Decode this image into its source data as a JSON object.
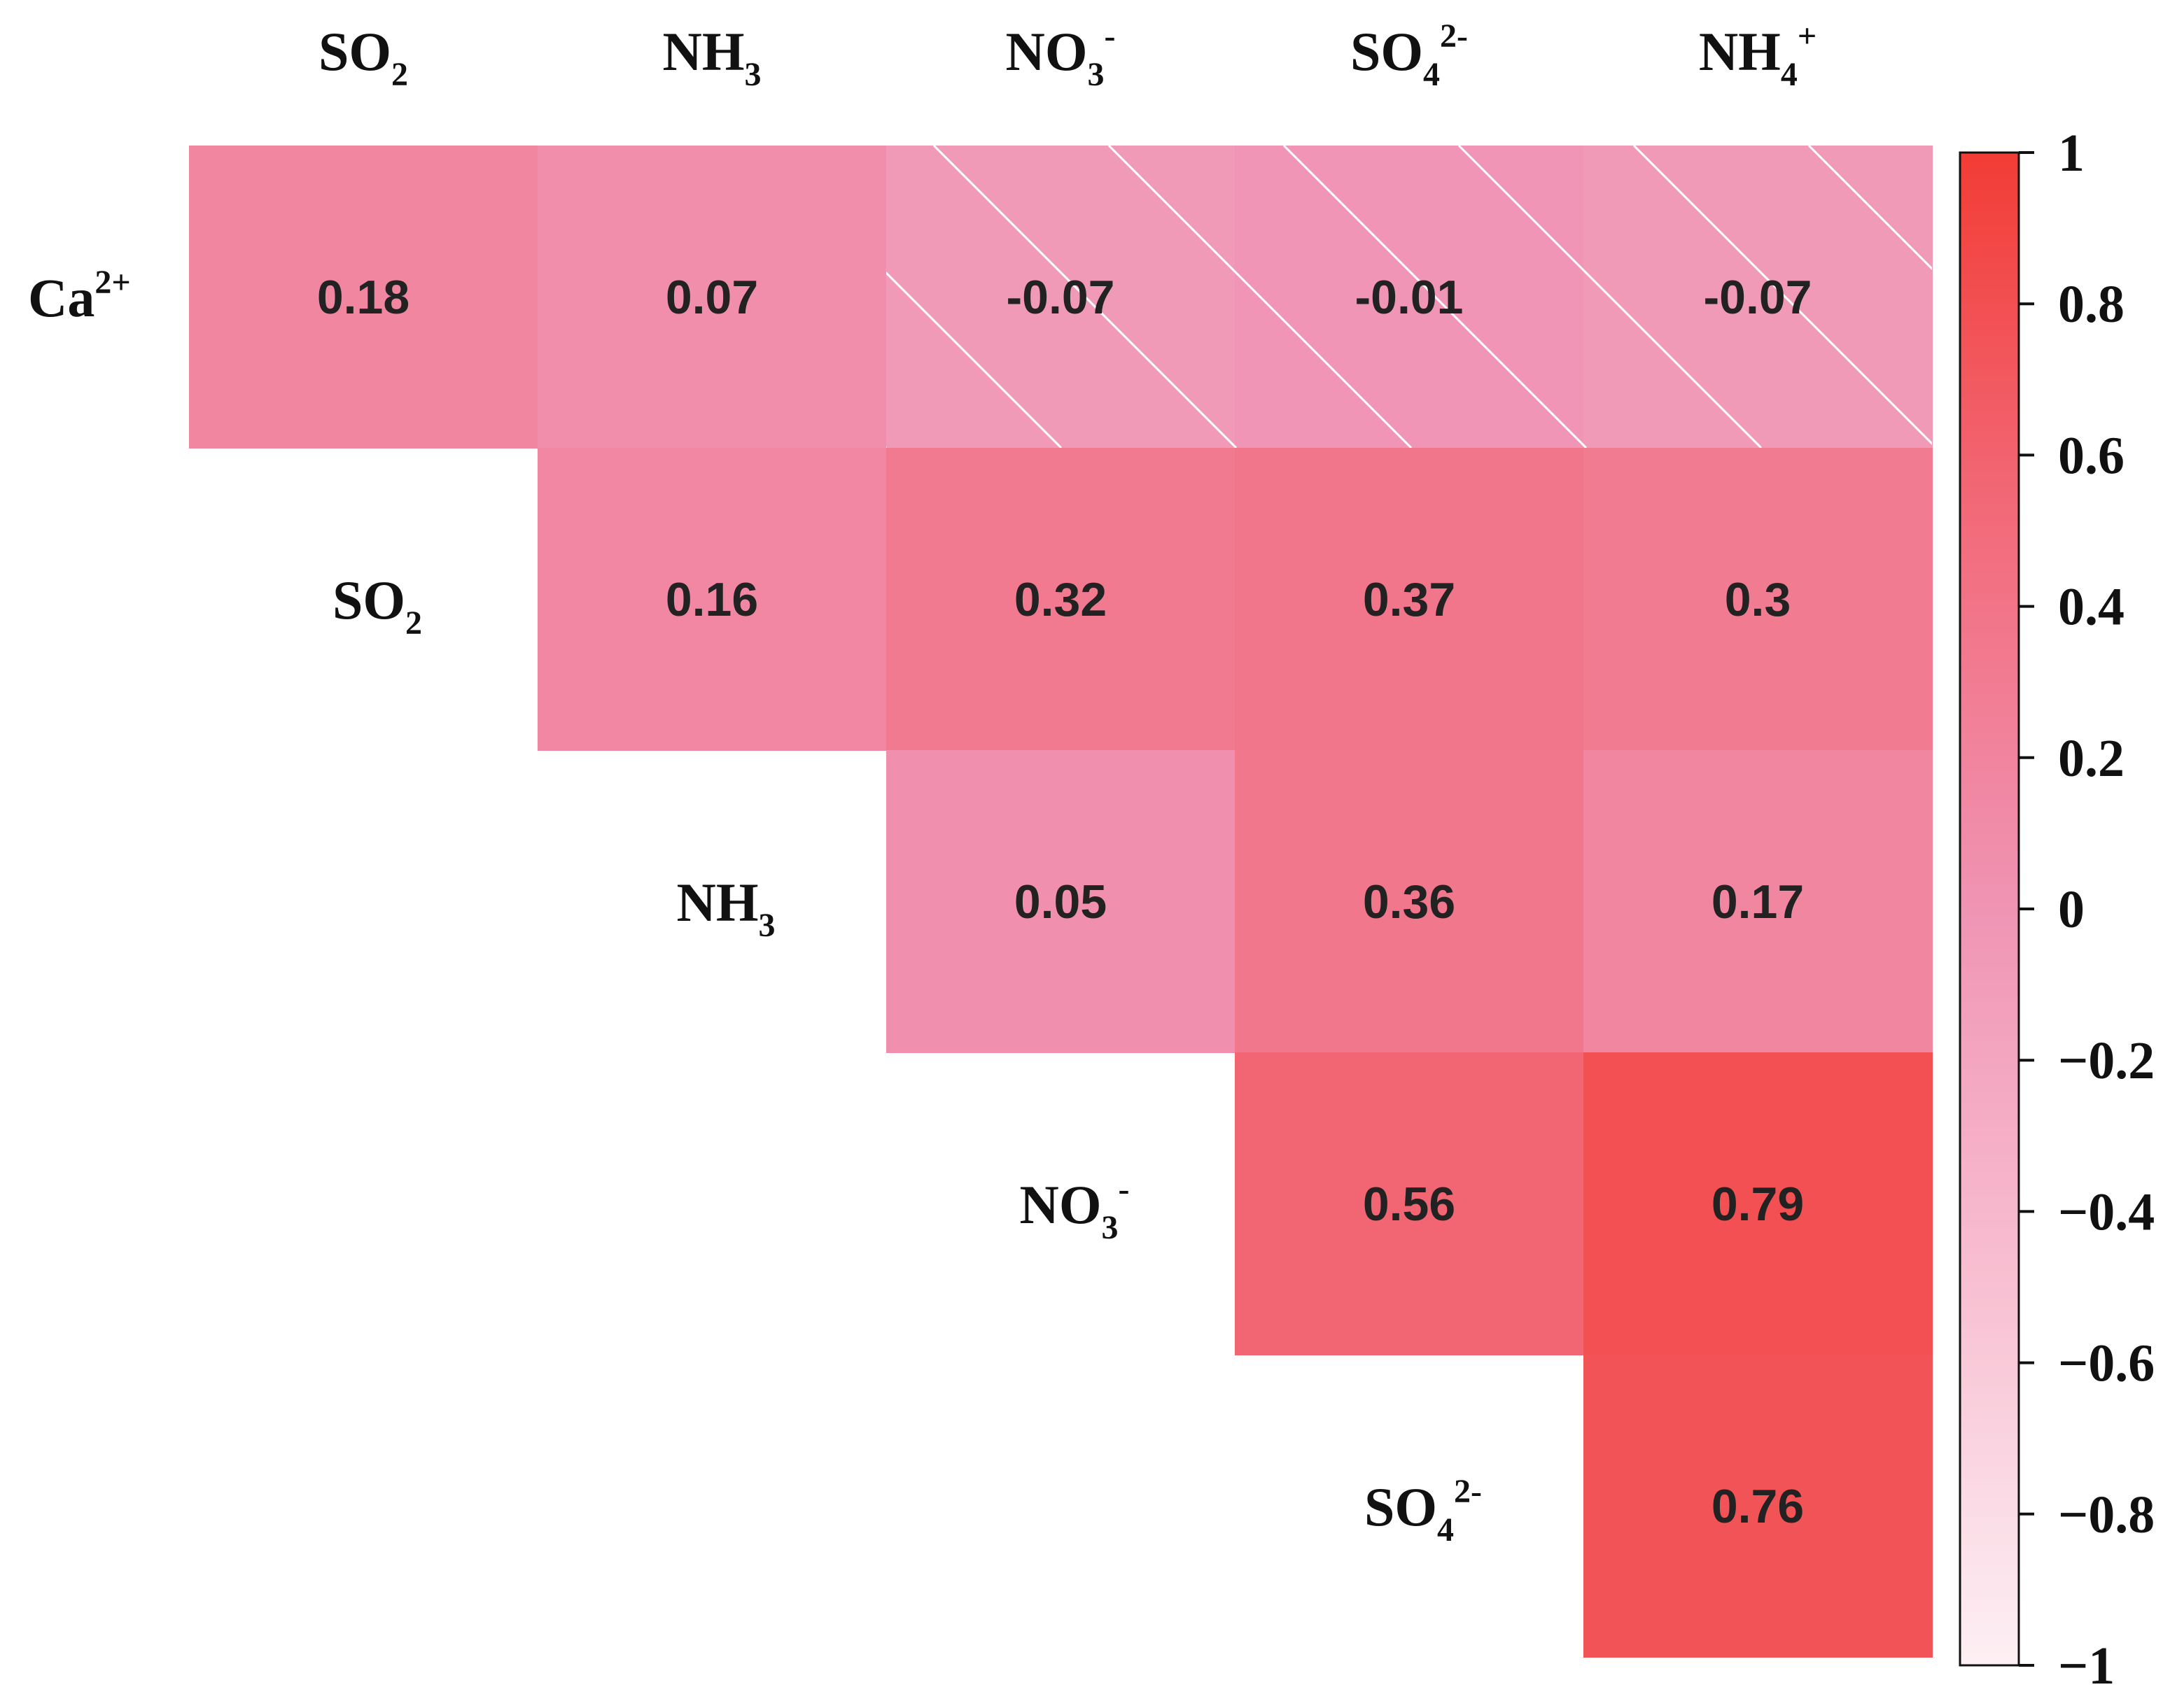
{
  "chart_data": {
    "type": "heatmap",
    "title": "",
    "columns": [
      {
        "id": "SO2",
        "base": "SO",
        "sub": "2",
        "sup": ""
      },
      {
        "id": "NH3",
        "base": "NH",
        "sub": "3",
        "sup": ""
      },
      {
        "id": "NO3-",
        "base": "NO",
        "sub": "3",
        "sup": "-"
      },
      {
        "id": "SO42-",
        "base": "SO",
        "sub": "4",
        "sup": "2-"
      },
      {
        "id": "NH4+",
        "base": "NH",
        "sub": "4",
        "sup": "+"
      }
    ],
    "rows": [
      {
        "id": "Ca2+",
        "base": "Ca",
        "sub": "",
        "sup": "2+"
      },
      {
        "id": "SO2",
        "base": "SO",
        "sub": "2",
        "sup": ""
      },
      {
        "id": "NH3",
        "base": "NH",
        "sub": "3",
        "sup": ""
      },
      {
        "id": "NO3-",
        "base": "NO",
        "sub": "3",
        "sup": "-"
      },
      {
        "id": "SO42-",
        "base": "SO",
        "sub": "4",
        "sup": "2-"
      }
    ],
    "cells": [
      {
        "row": 0,
        "col": 0,
        "value": 0.18,
        "label": "0.18",
        "hatched": false
      },
      {
        "row": 0,
        "col": 1,
        "value": 0.07,
        "label": "0.07",
        "hatched": false
      },
      {
        "row": 0,
        "col": 2,
        "value": -0.07,
        "label": "-0.07",
        "hatched": true
      },
      {
        "row": 0,
        "col": 3,
        "value": -0.01,
        "label": "-0.01",
        "hatched": true
      },
      {
        "row": 0,
        "col": 4,
        "value": -0.07,
        "label": "-0.07",
        "hatched": true
      },
      {
        "row": 1,
        "col": 1,
        "value": 0.16,
        "label": "0.16",
        "hatched": false
      },
      {
        "row": 1,
        "col": 2,
        "value": 0.32,
        "label": "0.32",
        "hatched": false
      },
      {
        "row": 1,
        "col": 3,
        "value": 0.37,
        "label": "0.37",
        "hatched": false
      },
      {
        "row": 1,
        "col": 4,
        "value": 0.3,
        "label": "0.3",
        "hatched": false
      },
      {
        "row": 2,
        "col": 2,
        "value": 0.05,
        "label": "0.05",
        "hatched": false
      },
      {
        "row": 2,
        "col": 3,
        "value": 0.36,
        "label": "0.36",
        "hatched": false
      },
      {
        "row": 2,
        "col": 4,
        "value": 0.17,
        "label": "0.17",
        "hatched": false
      },
      {
        "row": 3,
        "col": 3,
        "value": 0.56,
        "label": "0.56",
        "hatched": false
      },
      {
        "row": 3,
        "col": 4,
        "value": 0.79,
        "label": "0.79",
        "hatched": false
      },
      {
        "row": 4,
        "col": 4,
        "value": 0.76,
        "label": "0.76",
        "hatched": false
      }
    ],
    "colorbar": {
      "min": -1,
      "max": 1,
      "ticks": [
        {
          "value": 1,
          "label": "1"
        },
        {
          "value": 0.8,
          "label": "0.8"
        },
        {
          "value": 0.6,
          "label": "0.6"
        },
        {
          "value": 0.4,
          "label": "0.4"
        },
        {
          "value": 0.2,
          "label": "0.2"
        },
        {
          "value": 0,
          "label": "0"
        },
        {
          "value": -0.2,
          "label": "−0.2"
        },
        {
          "value": -0.4,
          "label": "−0.4"
        },
        {
          "value": -0.6,
          "label": "−0.6"
        },
        {
          "value": -0.8,
          "label": "−0.8"
        },
        {
          "value": -1,
          "label": "−1"
        }
      ],
      "color_stops": [
        {
          "value": -1,
          "color": "#fdf0f4"
        },
        {
          "value": -0.5,
          "color": "#f8c0d2"
        },
        {
          "value": 0,
          "color": "#f094b4"
        },
        {
          "value": 0.5,
          "color": "#f26c7c"
        },
        {
          "value": 1,
          "color": "#f23c35"
        }
      ]
    },
    "colors": {
      "label": "#111111",
      "value_text": "#222222",
      "hatch": "#ffffff"
    },
    "grid": false,
    "legend": "right"
  }
}
